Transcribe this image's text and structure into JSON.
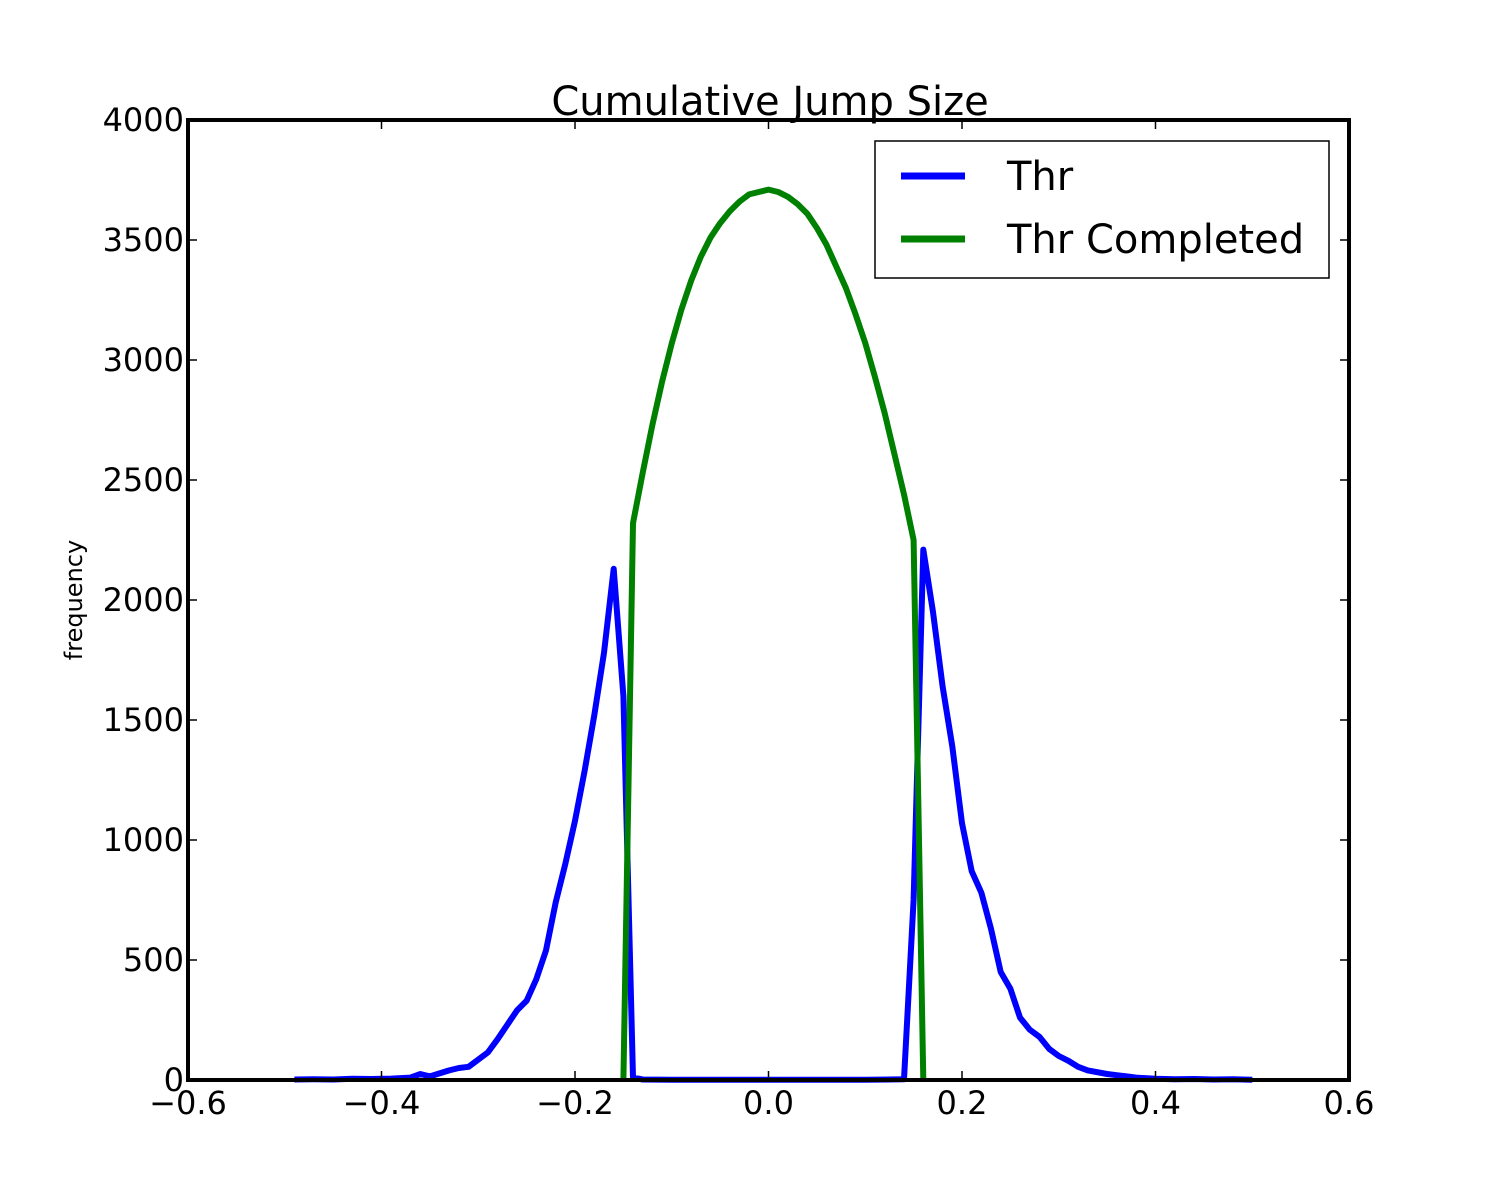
{
  "chart_data": {
    "type": "line",
    "title": "Cumulative Jump Size",
    "xlabel": "",
    "ylabel": "frequency",
    "xlim": [
      -0.6,
      0.6
    ],
    "ylim": [
      0,
      4000
    ],
    "xticks": [
      -0.6,
      -0.4,
      -0.2,
      0.0,
      0.2,
      0.4,
      0.6
    ],
    "xtick_labels": [
      "−0.6",
      "−0.4",
      "−0.2",
      "0.0",
      "0.2",
      "0.4",
      "0.6"
    ],
    "yticks": [
      0,
      500,
      1000,
      1500,
      2000,
      2500,
      3000,
      3500,
      4000
    ],
    "ytick_labels": [
      "0",
      "500",
      "1000",
      "1500",
      "2000",
      "2500",
      "3000",
      "3500",
      "4000"
    ],
    "grid": false,
    "legend_position": "top-right",
    "series": [
      {
        "name": "Thr",
        "color": "#0000ff",
        "x": [
          -0.49,
          -0.47,
          -0.45,
          -0.43,
          -0.41,
          -0.39,
          -0.37,
          -0.36,
          -0.35,
          -0.33,
          -0.32,
          -0.31,
          -0.29,
          -0.28,
          -0.27,
          -0.26,
          -0.25,
          -0.24,
          -0.23,
          -0.22,
          -0.21,
          -0.2,
          -0.19,
          -0.18,
          -0.17,
          -0.16,
          -0.15,
          -0.14,
          -0.13,
          -0.1,
          -0.05,
          0.0,
          0.05,
          0.1,
          0.14,
          0.15,
          0.16,
          0.17,
          0.18,
          0.19,
          0.2,
          0.21,
          0.22,
          0.23,
          0.24,
          0.25,
          0.26,
          0.27,
          0.28,
          0.29,
          0.3,
          0.31,
          0.32,
          0.33,
          0.35,
          0.36,
          0.37,
          0.38,
          0.4,
          0.42,
          0.44,
          0.46,
          0.48,
          0.5
        ],
        "y": [
          2,
          3,
          2,
          5,
          4,
          6,
          10,
          25,
          15,
          40,
          50,
          55,
          115,
          170,
          230,
          290,
          330,
          420,
          540,
          740,
          900,
          1080,
          1290,
          1520,
          1780,
          2130,
          1600,
          10,
          2,
          1,
          1,
          1,
          1,
          1,
          3,
          750,
          2210,
          1950,
          1640,
          1390,
          1070,
          870,
          780,
          630,
          450,
          380,
          260,
          210,
          180,
          130,
          100,
          80,
          55,
          40,
          25,
          20,
          15,
          10,
          5,
          3,
          4,
          2,
          3,
          1
        ]
      },
      {
        "name": "Thr Completed",
        "color": "#008000",
        "x": [
          -0.15,
          -0.14,
          -0.13,
          -0.12,
          -0.11,
          -0.1,
          -0.09,
          -0.08,
          -0.07,
          -0.06,
          -0.05,
          -0.04,
          -0.03,
          -0.02,
          -0.01,
          0.0,
          0.01,
          0.02,
          0.03,
          0.04,
          0.05,
          0.06,
          0.07,
          0.08,
          0.09,
          0.1,
          0.11,
          0.12,
          0.13,
          0.14,
          0.15,
          0.16
        ],
        "y": [
          0,
          2320,
          2530,
          2730,
          2910,
          3070,
          3210,
          3330,
          3430,
          3510,
          3570,
          3620,
          3660,
          3690,
          3700,
          3710,
          3700,
          3680,
          3650,
          3610,
          3550,
          3480,
          3390,
          3300,
          3190,
          3070,
          2930,
          2780,
          2610,
          2440,
          2250,
          0
        ]
      }
    ]
  }
}
